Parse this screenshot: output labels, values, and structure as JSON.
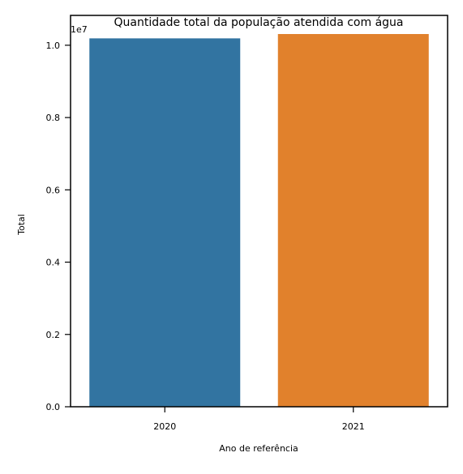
{
  "chart_data": {
    "type": "bar",
    "title": "Quantidade total da população atendida com água",
    "xlabel": "Ano de referência",
    "ylabel": "Total",
    "categories": [
      "2020",
      "2021"
    ],
    "values": [
      10190000,
      10310000
    ],
    "colors": [
      "#3274a1",
      "#e1812c"
    ],
    "ylim": [
      0,
      10825500
    ],
    "offset_label": "1e7",
    "ytick_values": [
      0,
      2000000,
      4000000,
      6000000,
      8000000,
      10000000
    ],
    "ytick_labels": [
      "0.0",
      "0.2",
      "0.4",
      "0.6",
      "0.8",
      "1.0"
    ],
    "grid": false
  }
}
